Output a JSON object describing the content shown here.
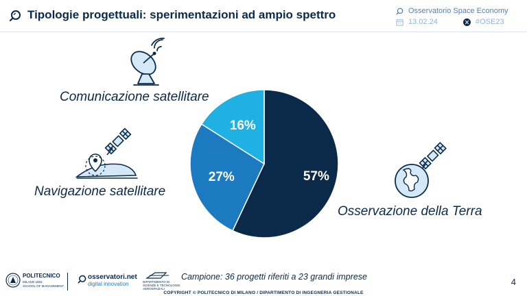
{
  "header": {
    "title": "Tipologie progettuali: sperimentazioni ad ampio spettro",
    "observatory": "Osservatorio Space Economy",
    "date": "13.02.24",
    "hashtag": "#OSE23"
  },
  "chart_data": {
    "type": "pie",
    "title": "",
    "slices": [
      {
        "label": "Osservazione della Terra",
        "value": 57,
        "value_label": "57%",
        "color": "#0b2a4a"
      },
      {
        "label": "Navigazione satellitare",
        "value": 27,
        "value_label": "27%",
        "color": "#1c7bc0"
      },
      {
        "label": "Comunicazione satellitare",
        "value": 16,
        "value_label": "16%",
        "color": "#1fb1e4"
      }
    ]
  },
  "labels": {
    "communication": "Comunicazione satellitare",
    "navigation": "Navigazione satellitare",
    "observation": "Osservazione della Terra"
  },
  "footer": {
    "sample": "Campione: 36 progetti riferiti a 23 grandi imprese",
    "copyright": "COPYRIGHT © POLITECNICO DI MILANO / DIPARTIMENTO DI INGEGNERIA GESTIONALE",
    "page_number": "4",
    "logo_polimi_name": "POLITECNICO",
    "logo_polimi_sub1": "MILANO 1863",
    "logo_polimi_sub2": "SCHOOL OF MANAGEMENT",
    "logo_osservatori_name": "osservatori.net",
    "logo_osservatori_sub": "digital innovation",
    "logo_dept_sub1": "DIPARTIMENTO DI",
    "logo_dept_sub2": "SCIENZE E TECNOLOGIE",
    "logo_dept_sub3": "AEROSPAZIALI"
  },
  "icons": {
    "header": "search-bubble-icon",
    "communication": "satellite-dish-icon",
    "navigation": "gps-satellite-icon",
    "observation": "earth-satellite-icon"
  }
}
